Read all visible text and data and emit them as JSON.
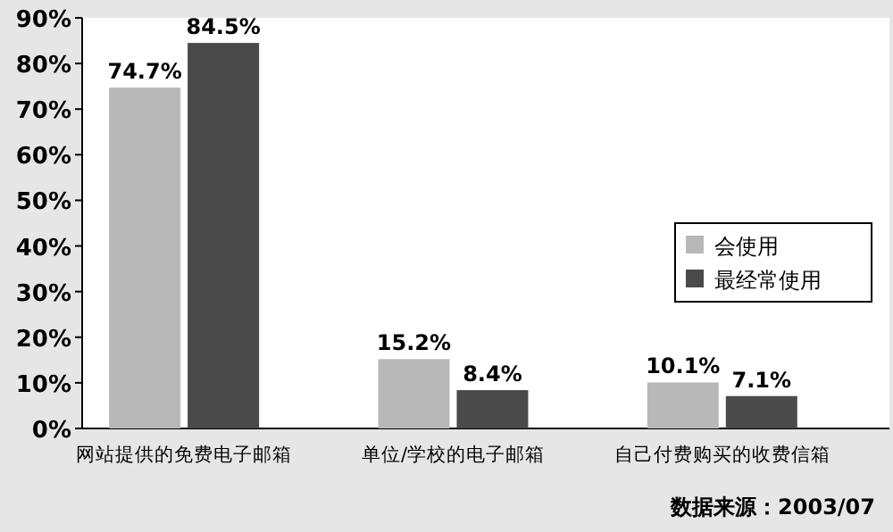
{
  "chart_data": {
    "type": "bar",
    "categories": [
      "网站提供的免费电子邮箱",
      "单位/学校的电子邮箱",
      "自己付费购买的收费信箱"
    ],
    "series": [
      {
        "name": "会使用",
        "color": "#b8b8b8",
        "values": [
          74.7,
          15.2,
          10.1
        ],
        "value_labels": [
          "74.7%",
          "15.2%",
          "10.1%"
        ]
      },
      {
        "name": "最经常使用",
        "color": "#4a4a4a",
        "values": [
          84.5,
          8.4,
          7.1
        ],
        "value_labels": [
          "84.5%",
          "8.4%",
          "7.1%"
        ]
      }
    ],
    "ylim": [
      0,
      90
    ],
    "yticks": [
      {
        "value": 0,
        "label": "0%"
      },
      {
        "value": 10,
        "label": "10%"
      },
      {
        "value": 20,
        "label": "20%"
      },
      {
        "value": 30,
        "label": "30%"
      },
      {
        "value": 40,
        "label": "40%"
      },
      {
        "value": 50,
        "label": "50%"
      },
      {
        "value": 60,
        "label": "60%"
      },
      {
        "value": 70,
        "label": "70%"
      },
      {
        "value": 80,
        "label": "80%"
      },
      {
        "value": 90,
        "label": "90%"
      }
    ],
    "grid": false,
    "legend": "right",
    "annotations": [
      "数据来源：2003/07"
    ]
  }
}
